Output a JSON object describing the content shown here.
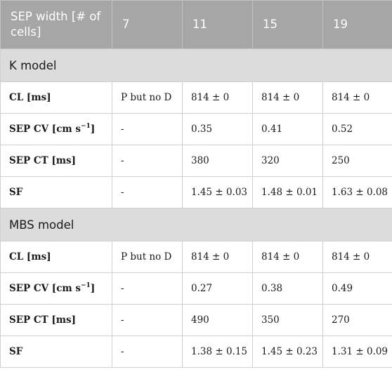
{
  "header": [
    "SEP width [# of cells]",
    "7",
    "11",
    "15",
    "19"
  ],
  "sections": [
    {
      "title": "K model",
      "rows": [
        {
          "label": "CL [ms]",
          "cells": [
            "P but no D",
            "814 ± 0",
            "814 ± 0",
            "814 ± 0"
          ]
        },
        {
          "label": "SEP CV [cm s",
          "label_sup": "−1",
          "label_tail": "]",
          "cells": [
            "-",
            "0.35",
            "0.41",
            "0.52"
          ]
        },
        {
          "label": "SEP CT [ms]",
          "cells": [
            "-",
            "380",
            "320",
            "250"
          ]
        },
        {
          "label": "SF",
          "cells": [
            "-",
            "1.45 ± 0.03",
            "1.48 ± 0.01",
            "1.63 ± 0.08"
          ]
        }
      ]
    },
    {
      "title": "MBS model",
      "rows": [
        {
          "label": "CL [ms]",
          "cells": [
            "P but no D",
            "814 ± 0",
            "814 ± 0",
            "814 ± 0"
          ]
        },
        {
          "label": "SEP CV [cm s",
          "label_sup": "−1",
          "label_tail": "]",
          "cells": [
            "-",
            "0.27",
            "0.38",
            "0.49"
          ]
        },
        {
          "label": "SEP CT [ms]",
          "cells": [
            "-",
            "490",
            "350",
            "270"
          ]
        },
        {
          "label": "SF",
          "cells": [
            "-",
            "1.38 ± 0.15",
            "1.45 ± 0.23",
            "1.31 ± 0.09"
          ]
        }
      ]
    }
  ]
}
